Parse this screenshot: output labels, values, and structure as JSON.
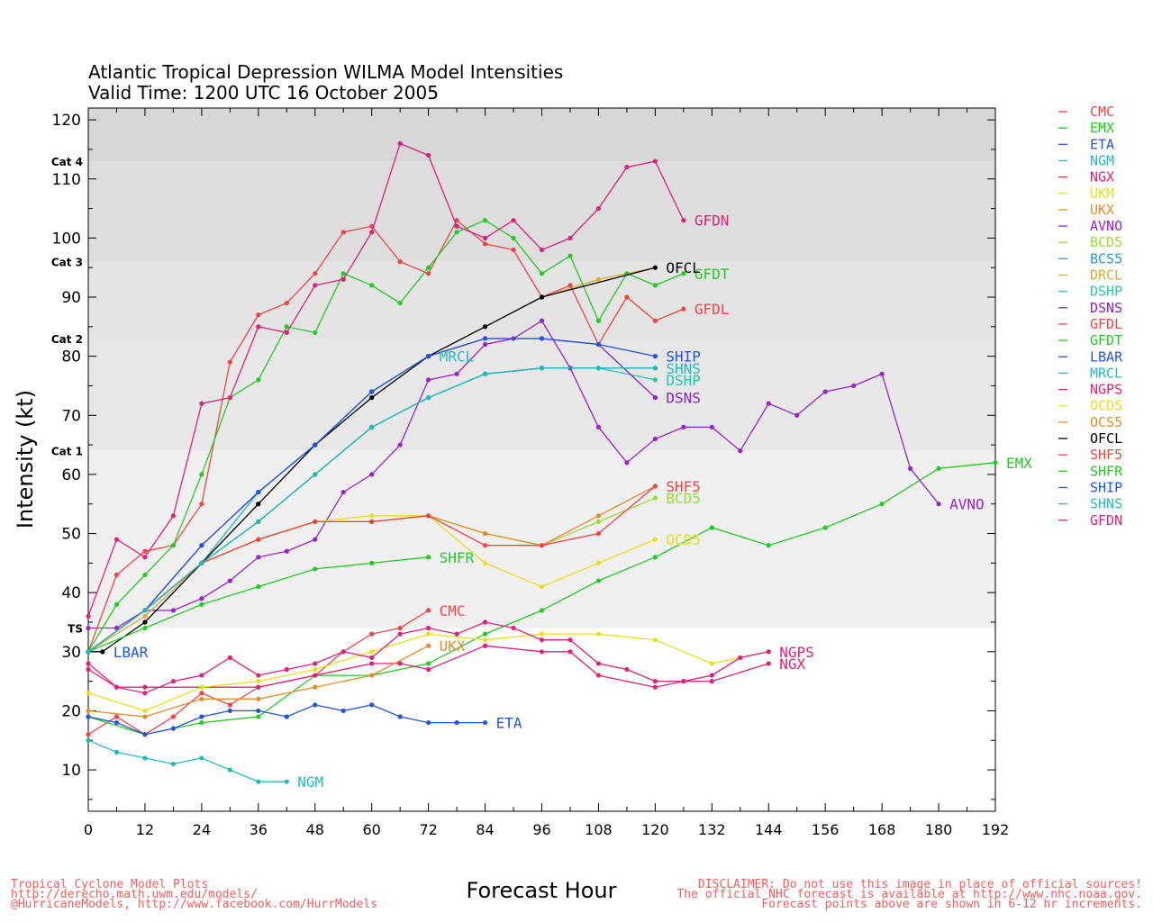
{
  "title_line1": "Atlantic Tropical Depression WILMA Model Intensities",
  "title_line2": "Valid Time: 1200 UTC 16 October 2005",
  "footer_left": [
    "Tropical Cyclone Model Plots",
    "http://derecho.math.uwm.edu/models/",
    "@HurricaneModels, http://www.facebook.com/HurrModels"
  ],
  "footer_right": [
    "DISCLAIMER: Do not use this image in place of official sources!",
    "The official NHC forecast is available at http://www.nhc.noaa.gov.",
    "Forecast points above are shown in 6-12 hr increments."
  ],
  "chart_data": {
    "type": "line",
    "title": "Atlantic Tropical Depression WILMA Model Intensities",
    "subtitle": "Valid Time: 1200 UTC 16 October 2005",
    "xlabel": "Forecast Hour",
    "ylabel": "Intensity (kt)",
    "xlim": [
      0,
      192
    ],
    "ylim": [
      3,
      122
    ],
    "xticks": [
      0,
      12,
      24,
      36,
      48,
      60,
      72,
      84,
      96,
      108,
      120,
      132,
      144,
      156,
      168,
      180,
      192
    ],
    "yticks": [
      10,
      20,
      30,
      40,
      50,
      60,
      70,
      80,
      90,
      100,
      110,
      120
    ],
    "grid": false,
    "legend_position": "right",
    "categories": [
      {
        "label": "TS",
        "from": 34,
        "to": 64,
        "color": "#f0f0f0"
      },
      {
        "label": "Cat 1",
        "from": 64,
        "to": 83,
        "color": "#e8e8e8"
      },
      {
        "label": "Cat 2",
        "from": 83,
        "to": 96,
        "color": "#e4e4e4"
      },
      {
        "label": "Cat 3",
        "from": 96,
        "to": 113,
        "color": "#dedede"
      },
      {
        "label": "Cat 4",
        "from": 113,
        "to": 122,
        "color": "#d7d7d7"
      }
    ],
    "series": [
      {
        "name": "CMC",
        "color": "#f24444",
        "end_label": "CMC",
        "x": [
          0,
          6,
          12,
          18,
          24,
          30,
          36,
          48,
          54,
          60,
          66,
          72
        ],
        "y": [
          16,
          19,
          16,
          19,
          23,
          21,
          24,
          26,
          30,
          33,
          34,
          37
        ]
      },
      {
        "name": "EMX",
        "color": "#22cc22",
        "end_label": "EMX",
        "x": [
          0,
          12,
          24,
          36,
          48,
          60,
          72,
          84,
          96,
          108,
          120,
          132,
          144,
          156,
          168,
          180,
          192
        ],
        "y": [
          19,
          16,
          18,
          19,
          26,
          26,
          28,
          33,
          37,
          42,
          46,
          51,
          48,
          51,
          55,
          61,
          62
        ]
      },
      {
        "name": "ETA",
        "color": "#2255dd",
        "end_label": "ETA",
        "x": [
          0,
          6,
          12,
          18,
          24,
          30,
          36,
          42,
          48,
          54,
          60,
          66,
          72,
          78,
          84
        ],
        "y": [
          19,
          18,
          16,
          17,
          19,
          20,
          20,
          19,
          21,
          20,
          21,
          19,
          18,
          18,
          18
        ]
      },
      {
        "name": "NGM",
        "color": "#22bbbb",
        "end_label": "NGM",
        "x": [
          0,
          6,
          12,
          18,
          24,
          30,
          36,
          42
        ],
        "y": [
          15,
          13,
          12,
          11,
          12,
          10,
          8,
          8
        ]
      },
      {
        "name": "NGX",
        "color": "#e0207a",
        "end_label": "NGX",
        "x": [
          0,
          6,
          12,
          24,
          36,
          48,
          60,
          66,
          72,
          84,
          96,
          102,
          108,
          120,
          126,
          132,
          144
        ],
        "y": [
          27,
          24,
          24,
          24,
          24,
          26,
          28,
          28,
          27,
          31,
          30,
          30,
          26,
          24,
          25,
          25,
          28
        ]
      },
      {
        "name": "UKM",
        "color": "#e8e020",
        "end_label": "",
        "x": [
          0,
          12,
          24,
          36,
          48,
          60,
          72,
          84,
          96,
          108,
          120,
          132,
          144
        ],
        "y": [
          23,
          20,
          24,
          25,
          27,
          30,
          33,
          32,
          33,
          33,
          32,
          28,
          30
        ]
      },
      {
        "name": "UKX",
        "color": "#e88a2a",
        "end_label": "UKX",
        "x": [
          0,
          12,
          24,
          36,
          48,
          60,
          72
        ],
        "y": [
          20,
          19,
          22,
          22,
          24,
          26,
          31
        ]
      },
      {
        "name": "AVNO",
        "color": "#9922cc",
        "end_label": "AVNO",
        "x": [
          0,
          6,
          12,
          18,
          24,
          30,
          36,
          42,
          48,
          54,
          60,
          66,
          72,
          78,
          84,
          90,
          96,
          102,
          108,
          114,
          120,
          126,
          132,
          138,
          144,
          150,
          156,
          162,
          168,
          174,
          180
        ],
        "y": [
          34,
          34,
          37,
          37,
          39,
          42,
          46,
          47,
          49,
          57,
          60,
          65,
          76,
          77,
          82,
          83,
          86,
          78,
          68,
          62,
          66,
          68,
          68,
          64,
          72,
          70,
          74,
          75,
          77,
          61,
          55
        ]
      },
      {
        "name": "BCD5",
        "color": "#99dd33",
        "end_label": "BCD5",
        "x": [
          0,
          12,
          24,
          36,
          48,
          60,
          72,
          84,
          96,
          108,
          120
        ],
        "y": [
          30,
          37,
          45,
          49,
          52,
          52,
          53,
          50,
          48,
          52,
          56
        ]
      },
      {
        "name": "BCS5",
        "color": "#2299dd",
        "end_label": "",
        "x": [
          0,
          12,
          24,
          36,
          48,
          60,
          72,
          84,
          96,
          108,
          120
        ],
        "y": [
          30,
          37,
          45,
          52,
          60,
          68,
          73,
          77,
          78,
          78,
          78
        ]
      },
      {
        "name": "DRCL",
        "color": "#ddaa33",
        "end_label": "",
        "x": [
          0,
          12,
          24,
          36,
          48,
          60,
          72,
          84,
          96,
          108,
          120
        ],
        "y": [
          30,
          36,
          45,
          55,
          65,
          73,
          80,
          85,
          90,
          93,
          95
        ]
      },
      {
        "name": "DSHP",
        "color": "#22ccaa",
        "end_label": "DSHP",
        "x": [
          0,
          12,
          24,
          36,
          48,
          60,
          72,
          84,
          96,
          108,
          120
        ],
        "y": [
          30,
          37,
          45,
          52,
          60,
          68,
          73,
          77,
          78,
          78,
          76
        ]
      },
      {
        "name": "DSNS",
        "color": "#8822cc",
        "end_label": "DSNS",
        "x": [
          0,
          12,
          24,
          36,
          48,
          60,
          72,
          84,
          96,
          108,
          120
        ],
        "y": [
          30,
          37,
          48,
          57,
          65,
          74,
          80,
          83,
          83,
          82,
          73
        ]
      },
      {
        "name": "GFDL",
        "color": "#f24444",
        "end_label": "GFDL",
        "x": [
          0,
          6,
          12,
          18,
          24,
          30,
          36,
          42,
          48,
          54,
          60,
          66,
          72,
          78,
          84,
          90,
          96,
          102,
          108,
          114,
          120,
          126
        ],
        "y": [
          30,
          43,
          47,
          48,
          55,
          79,
          87,
          89,
          94,
          101,
          102,
          96,
          94,
          103,
          99,
          98,
          90,
          92,
          82,
          90,
          86,
          88
        ]
      },
      {
        "name": "GFDT",
        "color": "#22cc22",
        "end_label": "GFDT",
        "x": [
          0,
          6,
          12,
          18,
          24,
          30,
          36,
          42,
          48,
          54,
          60,
          66,
          72,
          78,
          84,
          90,
          96,
          102,
          108,
          114,
          120,
          126
        ],
        "y": [
          30,
          38,
          43,
          48,
          60,
          73,
          76,
          85,
          84,
          94,
          92,
          89,
          95,
          101,
          103,
          100,
          94,
          97,
          86,
          94,
          92,
          94
        ]
      },
      {
        "name": "LBAR",
        "color": "#2255dd",
        "end_label": "LBAR",
        "x": [
          0,
          3
        ],
        "y": [
          30,
          30
        ]
      },
      {
        "name": "MRCL",
        "color": "#22bbbb",
        "end_label": "MRCL",
        "x": [
          0,
          12,
          24,
          36,
          48,
          60,
          72
        ],
        "y": [
          30,
          37,
          45,
          57,
          65,
          74,
          80
        ]
      },
      {
        "name": "NGPS",
        "color": "#e0207a",
        "end_label": "NGPS",
        "x": [
          0,
          6,
          12,
          18,
          24,
          30,
          36,
          42,
          48,
          54,
          60,
          66,
          72,
          78,
          84,
          90,
          96,
          102,
          108,
          114,
          120,
          126,
          132,
          138,
          144
        ],
        "y": [
          28,
          24,
          23,
          25,
          26,
          29,
          26,
          27,
          28,
          30,
          29,
          33,
          34,
          33,
          35,
          34,
          32,
          32,
          28,
          27,
          25,
          25,
          26,
          29,
          30
        ]
      },
      {
        "name": "OCD5",
        "color": "#e8e020",
        "end_label": "OCD5",
        "x": [
          0,
          12,
          24,
          36,
          48,
          60,
          72,
          84,
          96,
          108,
          120
        ],
        "y": [
          30,
          37,
          45,
          49,
          52,
          53,
          53,
          45,
          41,
          45,
          49
        ]
      },
      {
        "name": "OCS5",
        "color": "#e88a2a",
        "end_label": "",
        "x": [
          0,
          12,
          24,
          36,
          48,
          60,
          72,
          84,
          96,
          108,
          120
        ],
        "y": [
          30,
          37,
          45,
          49,
          52,
          52,
          53,
          50,
          48,
          53,
          58
        ]
      },
      {
        "name": "OFCL",
        "color": "#000000",
        "end_label": "OFCL",
        "x": [
          0,
          3,
          12,
          24,
          36,
          48,
          60,
          72,
          84,
          96,
          120
        ],
        "y": [
          30,
          30,
          35,
          45,
          55,
          65,
          73,
          80,
          85,
          90,
          95
        ]
      },
      {
        "name": "SHF5",
        "color": "#f24444",
        "end_label": "SHF5",
        "x": [
          0,
          12,
          24,
          36,
          48,
          60,
          72,
          84,
          96,
          108,
          120
        ],
        "y": [
          30,
          37,
          45,
          49,
          52,
          52,
          53,
          48,
          48,
          50,
          58
        ]
      },
      {
        "name": "SHFR",
        "color": "#22cc22",
        "end_label": "SHFR",
        "x": [
          0,
          12,
          24,
          36,
          48,
          60,
          72
        ],
        "y": [
          30,
          34,
          38,
          41,
          44,
          45,
          46
        ]
      },
      {
        "name": "SHIP",
        "color": "#2255dd",
        "end_label": "SHIP",
        "x": [
          0,
          12,
          24,
          36,
          48,
          60,
          72,
          84,
          96,
          108,
          120
        ],
        "y": [
          30,
          37,
          48,
          57,
          65,
          74,
          80,
          83,
          83,
          82,
          80
        ]
      },
      {
        "name": "SHNS",
        "color": "#22bbbb",
        "end_label": "SHNS",
        "x": [
          0,
          12,
          24,
          36,
          48,
          60,
          72,
          84,
          96,
          108,
          120
        ],
        "y": [
          30,
          37,
          45,
          52,
          60,
          68,
          73,
          77,
          78,
          78,
          78
        ]
      },
      {
        "name": "GFDN",
        "color": "#e0207a",
        "end_label": "GFDN",
        "x": [
          0,
          6,
          12,
          18,
          24,
          30,
          36,
          42,
          48,
          54,
          60,
          66,
          72,
          78,
          84,
          90,
          96,
          102,
          108,
          114,
          120,
          126
        ],
        "y": [
          36,
          49,
          46,
          53,
          72,
          73,
          85,
          84,
          92,
          93,
          101,
          116,
          114,
          102,
          100,
          103,
          98,
          100,
          105,
          112,
          113,
          103
        ]
      }
    ]
  }
}
